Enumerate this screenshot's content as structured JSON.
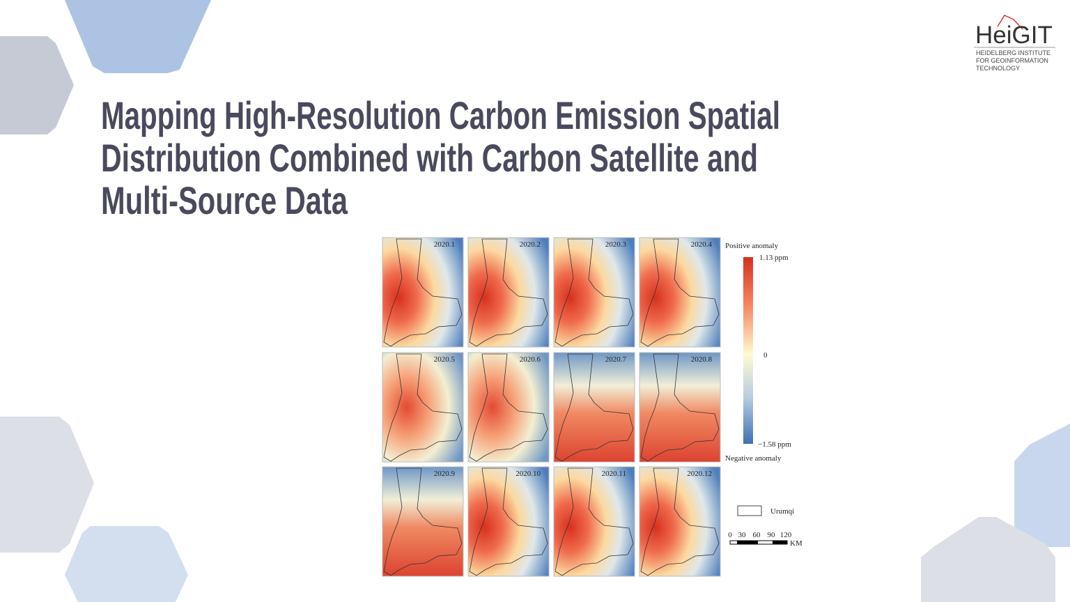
{
  "logo": {
    "name": "HeiGIT",
    "lines": [
      "HEIDELBERG INSTITUTE",
      "FOR GEOINFORMATION",
      "TECHNOLOGY"
    ]
  },
  "title": [
    "Mapping High-Resolution Carbon Emission Spatial",
    "Distribution Combined with Carbon Satellite and",
    "Multi-Source Data"
  ],
  "figure": {
    "panels": [
      "2020.1",
      "2020.2",
      "2020.3",
      "2020.4",
      "2020.5",
      "2020.6",
      "2020.7",
      "2020.8",
      "2020.9",
      "2020.10",
      "2020.11",
      "2020.12"
    ],
    "legend": {
      "top": "Positive anomaly",
      "max": "1.13 ppm",
      "mid": "0",
      "min": "−1.58 ppm",
      "bottom": "Negative anomaly",
      "boundary": "Urumqi"
    },
    "scale": {
      "ticks": [
        "0",
        "30",
        "60",
        "90",
        "120"
      ],
      "unit": "KM"
    }
  }
}
